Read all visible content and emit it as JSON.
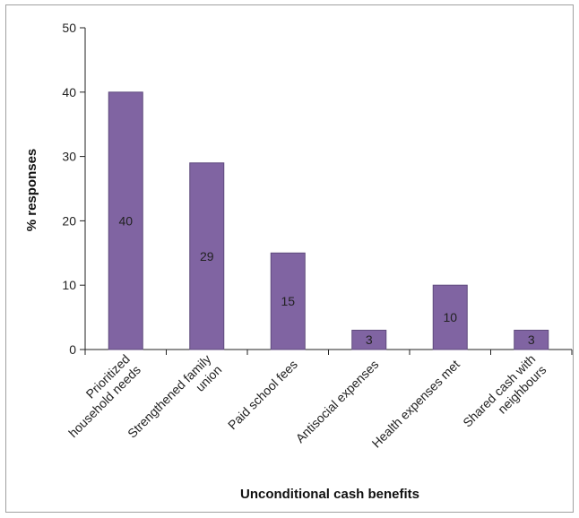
{
  "chart_data": {
    "type": "bar",
    "title": "",
    "xlabel": "Unconditional cash benefits",
    "ylabel": "% responses",
    "categories": [
      [
        "Prioritized",
        "household needs"
      ],
      [
        "Strengthened family",
        "union"
      ],
      [
        "Paid school fees"
      ],
      [
        "Antisocial expenses"
      ],
      [
        "Health expenses met"
      ],
      [
        "Shared cash with",
        "neighbours"
      ]
    ],
    "values": [
      40,
      29,
      15,
      3,
      10,
      3
    ],
    "data_labels": [
      "40",
      "29",
      "15",
      "3",
      "10",
      "3"
    ],
    "ylim": [
      0,
      50
    ],
    "yticks": [
      0,
      10,
      20,
      30,
      40,
      50
    ],
    "bar_color": "#8064a2",
    "bar_border": "#5f4a7d",
    "grid": false,
    "legend": "none"
  }
}
